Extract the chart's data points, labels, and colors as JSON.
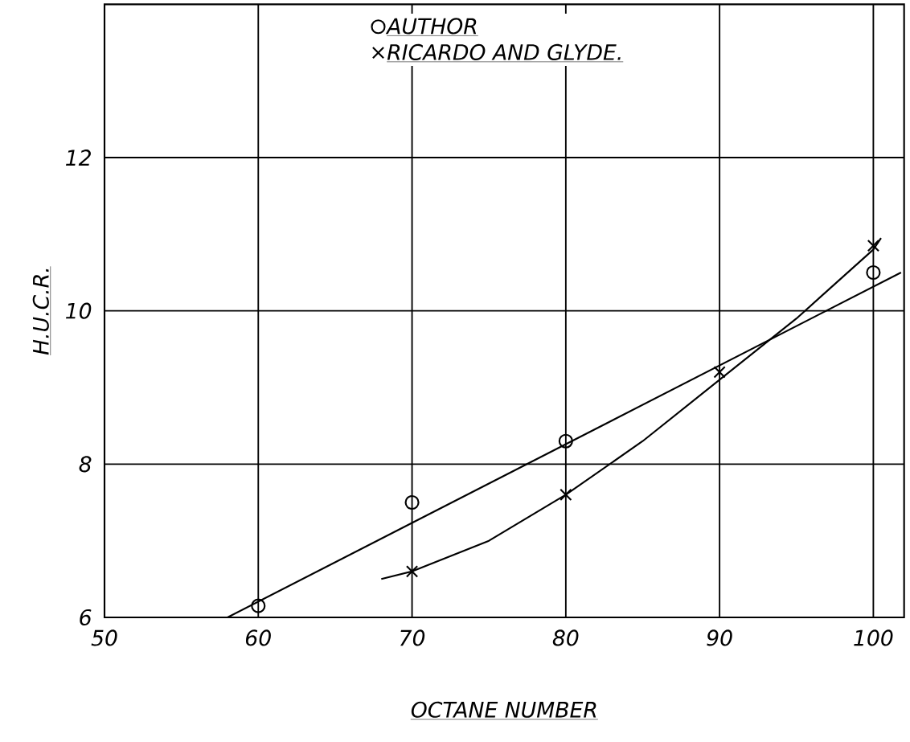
{
  "chart_data": {
    "type": "scatter",
    "xlabel": "OCTANE NUMBER",
    "ylabel": "H.U.C.R.",
    "xlim": [
      50,
      102
    ],
    "ylim": [
      6,
      14
    ],
    "xticks": [
      50,
      60,
      70,
      80,
      90,
      100
    ],
    "yticks": [
      6,
      8,
      10,
      12
    ],
    "grid": true,
    "legend": "top",
    "series": [
      {
        "name": "AUTHOR",
        "color": "#000000",
        "marker": "circle",
        "x": [
          60,
          70,
          80,
          100
        ],
        "values": [
          6.15,
          7.5,
          8.3,
          10.5
        ]
      },
      {
        "name": "RICARDO AND GLYDE.",
        "color": "#000000",
        "marker": "cross",
        "x": [
          70,
          80,
          90,
          100
        ],
        "values": [
          6.6,
          7.6,
          9.2,
          10.85
        ]
      },
      {
        "type": "line",
        "color": "#000000",
        "marker": "none",
        "x": [
          58,
          101.8
        ],
        "values": [
          6.0,
          10.5
        ]
      },
      {
        "type": "line",
        "color": "#000000",
        "marker": "none",
        "x": [
          68,
          70,
          75,
          80,
          85,
          90,
          95,
          100,
          100.5
        ],
        "values": [
          6.5,
          6.6,
          7.0,
          7.6,
          8.3,
          9.1,
          9.9,
          10.8,
          10.95
        ]
      }
    ]
  }
}
